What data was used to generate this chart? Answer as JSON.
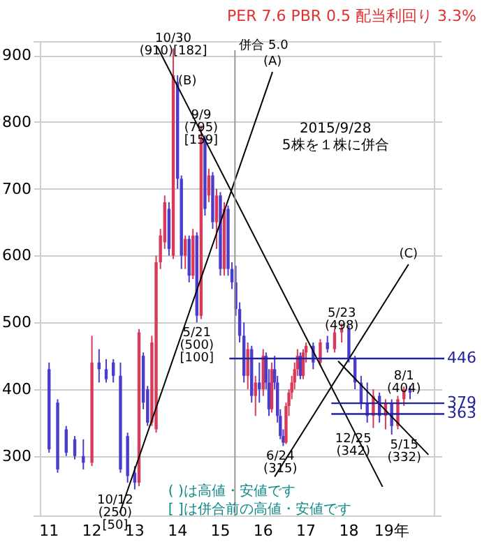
{
  "chart_data": {
    "type": "candlestick",
    "title": "PER 7.6 PBR 0.5 配当利回り 3.3%",
    "x": [
      11.0,
      11.2,
      11.4,
      11.6,
      11.8,
      12.0,
      12.167,
      12.333,
      12.5,
      12.667,
      12.833,
      13.0,
      13.1,
      13.2,
      13.3,
      13.4,
      13.5,
      13.6,
      13.7,
      13.8,
      13.9,
      14.0,
      14.09,
      14.18,
      14.27,
      14.36,
      14.45,
      14.55,
      14.64,
      14.73,
      14.82,
      14.91,
      15.0,
      15.09,
      15.18,
      15.27,
      15.36,
      15.45,
      15.55,
      15.64,
      15.73,
      15.82,
      15.91,
      16.0,
      16.067,
      16.133,
      16.2,
      16.267,
      16.333,
      16.4,
      16.467,
      16.533,
      16.6,
      16.667,
      16.733,
      16.8,
      16.867,
      16.933,
      17.0,
      17.167,
      17.333,
      17.5,
      17.667,
      17.833,
      18.0,
      18.143,
      18.286,
      18.429,
      18.571,
      18.714,
      18.857,
      19.0,
      19.143,
      19.286,
      19.429
    ],
    "ohlc": [
      [
        430,
        440,
        305,
        310
      ],
      [
        380,
        385,
        275,
        280
      ],
      [
        340,
        345,
        300,
        305
      ],
      [
        325,
        330,
        295,
        300
      ],
      [
        300,
        325,
        280,
        290
      ],
      [
        290,
        480,
        285,
        440
      ],
      [
        440,
        460,
        410,
        430
      ],
      [
        430,
        445,
        410,
        415
      ],
      [
        440,
        445,
        410,
        420
      ],
      [
        420,
        440,
        275,
        280
      ],
      [
        330,
        335,
        260,
        270
      ],
      [
        275,
        285,
        250,
        260
      ],
      [
        260,
        490,
        255,
        485
      ],
      [
        450,
        455,
        370,
        380
      ],
      [
        400,
        405,
        345,
        350
      ],
      [
        350,
        480,
        345,
        470
      ],
      [
        340,
        600,
        335,
        590
      ],
      [
        590,
        640,
        580,
        630
      ],
      [
        620,
        690,
        610,
        680
      ],
      [
        670,
        680,
        600,
        610
      ],
      [
        600,
        910,
        595,
        870
      ],
      [
        860,
        870,
        700,
        715
      ],
      [
        715,
        720,
        580,
        600
      ],
      [
        600,
        630,
        580,
        625
      ],
      [
        625,
        630,
        560,
        570
      ],
      [
        570,
        640,
        565,
        630
      ],
      [
        630,
        635,
        500,
        510
      ],
      [
        510,
        795,
        505,
        775
      ],
      [
        775,
        780,
        660,
        670
      ],
      [
        690,
        730,
        680,
        720
      ],
      [
        720,
        725,
        640,
        650
      ],
      [
        650,
        700,
        610,
        690
      ],
      [
        690,
        695,
        570,
        580
      ],
      [
        580,
        680,
        570,
        670
      ],
      [
        670,
        675,
        570,
        580
      ],
      [
        580,
        590,
        550,
        560
      ],
      [
        560,
        585,
        510,
        520
      ],
      [
        520,
        530,
        470,
        480
      ],
      [
        480,
        500,
        410,
        420
      ],
      [
        420,
        470,
        400,
        460
      ],
      [
        460,
        465,
        380,
        390
      ],
      [
        390,
        420,
        360,
        410
      ],
      [
        410,
        440,
        380,
        400
      ],
      [
        400,
        460,
        390,
        450
      ],
      [
        450,
        455,
        400,
        410
      ],
      [
        410,
        430,
        360,
        370
      ],
      [
        370,
        440,
        365,
        430
      ],
      [
        430,
        450,
        400,
        410
      ],
      [
        410,
        420,
        350,
        360
      ],
      [
        360,
        370,
        325,
        330
      ],
      [
        330,
        340,
        315,
        320
      ],
      [
        320,
        380,
        318,
        375
      ],
      [
        375,
        400,
        360,
        395
      ],
      [
        395,
        420,
        385,
        410
      ],
      [
        410,
        440,
        400,
        430
      ],
      [
        430,
        460,
        420,
        450
      ],
      [
        450,
        455,
        415,
        420
      ],
      [
        420,
        460,
        415,
        455
      ],
      [
        455,
        470,
        440,
        465
      ],
      [
        465,
        470,
        430,
        440
      ],
      [
        440,
        475,
        435,
        470
      ],
      [
        470,
        480,
        455,
        460
      ],
      [
        460,
        490,
        455,
        485
      ],
      [
        485,
        498,
        470,
        490
      ],
      [
        490,
        495,
        440,
        445
      ],
      [
        445,
        450,
        400,
        410
      ],
      [
        410,
        420,
        370,
        380
      ],
      [
        380,
        410,
        350,
        360
      ],
      [
        360,
        400,
        342,
        390
      ],
      [
        390,
        395,
        350,
        360
      ],
      [
        360,
        385,
        340,
        380
      ],
      [
        380,
        385,
        332,
        345
      ],
      [
        345,
        390,
        340,
        385
      ],
      [
        385,
        404,
        375,
        400
      ],
      [
        400,
        405,
        385,
        395
      ]
    ],
    "colors": [
      "#4a3ccc",
      "#4a3ccc",
      "#4a3ccc",
      "#4a3ccc",
      "#4a3ccc",
      "#d83a5a",
      "#4a3ccc",
      "#4a3ccc",
      "#4a3ccc",
      "#4a3ccc",
      "#4a3ccc",
      "#4a3ccc",
      "#d83a5a",
      "#4a3ccc",
      "#4a3ccc",
      "#d83a5a",
      "#d83a5a",
      "#d83a5a",
      "#d83a5a",
      "#4a3ccc",
      "#d83a5a",
      "#4a3ccc",
      "#4a3ccc",
      "#d83a5a",
      "#4a3ccc",
      "#d83a5a",
      "#4a3ccc",
      "#d83a5a",
      "#4a3ccc",
      "#d83a5a",
      "#4a3ccc",
      "#d83a5a",
      "#4a3ccc",
      "#d83a5a",
      "#4a3ccc",
      "#4a3ccc",
      "#4a3ccc",
      "#4a3ccc",
      "#4a3ccc",
      "#d83a5a",
      "#4a3ccc",
      "#d83a5a",
      "#4a3ccc",
      "#d83a5a",
      "#4a3ccc",
      "#4a3ccc",
      "#d83a5a",
      "#4a3ccc",
      "#4a3ccc",
      "#4a3ccc",
      "#4a3ccc",
      "#d83a5a",
      "#d83a5a",
      "#d83a5a",
      "#d83a5a",
      "#d83a5a",
      "#4a3ccc",
      "#d83a5a",
      "#d83a5a",
      "#4a3ccc",
      "#d83a5a",
      "#4a3ccc",
      "#d83a5a",
      "#d83a5a",
      "#4a3ccc",
      "#4a3ccc",
      "#4a3ccc",
      "#4a3ccc",
      "#d83a5a",
      "#4a3ccc",
      "#d83a5a",
      "#4a3ccc",
      "#d83a5a",
      "#d83a5a",
      "#4a3ccc"
    ],
    "xlim": [
      10.8,
      20.0
    ],
    "xticks": [
      11,
      12,
      13,
      14,
      15,
      16,
      17,
      18,
      {
        "value": 19,
        "label": "19年"
      }
    ],
    "ylim": [
      210,
      920
    ],
    "yticks": [
      300,
      400,
      500,
      600,
      700,
      800,
      900
    ],
    "grid": "y",
    "series": [
      {
        "type": "line",
        "color": "#000000",
        "x": [
          12.65,
          16.217
        ],
        "values": [
          215,
          875
        ]
      },
      {
        "type": "line",
        "color": "#000000",
        "x": [
          13.525,
          18.786
        ],
        "values": [
          913,
          254
        ]
      },
      {
        "type": "line",
        "color": "#000000",
        "x": [
          16.267,
          19.393
        ],
        "values": [
          269,
          587
        ]
      },
      {
        "type": "line",
        "color": "#000000",
        "x": [
          17.75,
          19.857
        ],
        "values": [
          442,
          302
        ]
      }
    ],
    "ref_lines": [
      {
        "axis": "x",
        "value": 15.34,
        "label": "併合 5.0",
        "color": "#999999"
      },
      {
        "axis": "y",
        "value": 446,
        "label": "446",
        "color": "#22229a"
      },
      {
        "axis": "y",
        "value": 379,
        "label": "379",
        "color": "#22229a"
      },
      {
        "axis": "y",
        "value": 363,
        "label": "363",
        "color": "#22229a"
      }
    ],
    "annotations": [
      {
        "text": "10/30\n(910)[182]",
        "x": 13.9,
        "y": 910
      },
      {
        "text": "(B)",
        "x": 14.23,
        "y": 846
      },
      {
        "text": "9/9\n(795)\n[159]",
        "x": 14.55,
        "y": 795
      },
      {
        "text": "5/21\n(500)\n[100]",
        "x": 14.45,
        "y": 500
      },
      {
        "text": "10/12\n(250)\n[50]",
        "x": 13.0,
        "y": 250
      },
      {
        "text": "(A)",
        "x": 16.217,
        "y": 875
      },
      {
        "text": "(C)",
        "x": 19.393,
        "y": 587
      },
      {
        "text": "5/23\n(498)",
        "x": 17.833,
        "y": 498
      },
      {
        "text": "6/24\n(315)",
        "x": 16.4,
        "y": 315
      },
      {
        "text": "12/25\n(342)",
        "x": 18.429,
        "y": 342
      },
      {
        "text": "5/15\n(332)",
        "x": 19.0,
        "y": 332
      },
      {
        "text": "8/1\n(404)",
        "x": 19.286,
        "y": 404
      },
      "2015/9/28\n5株を１株に併合",
      "( )は高値・安値です",
      "[ ]は併合前の高値・安値です"
    ]
  }
}
